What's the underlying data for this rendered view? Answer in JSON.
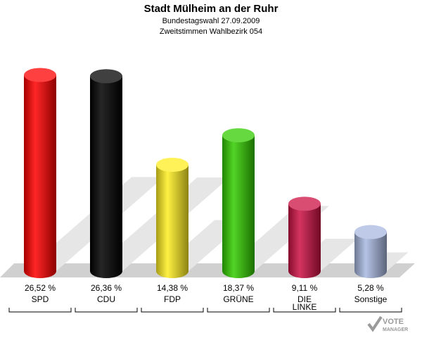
{
  "header": {
    "title": "Stadt Mülheim an der Ruhr",
    "subtitle1": "Bundestagswahl 27.09.2009",
    "subtitle2": "Zweitstimmen Wahlbezirk 054"
  },
  "brand": {
    "line1": "VOTE",
    "line2": "MANAGER"
  },
  "chart_data": {
    "type": "bar",
    "title": "Stadt Mülheim an der Ruhr",
    "categories": [
      "SPD",
      "CDU",
      "FDP",
      "GRÜNE",
      "DIE LINKE",
      "Sonstige"
    ],
    "category_lines": [
      [
        "SPD"
      ],
      [
        "CDU"
      ],
      [
        "FDP"
      ],
      [
        "GRÜNE"
      ],
      [
        "DIE",
        "LINKE"
      ],
      [
        "Sonstige"
      ]
    ],
    "values": [
      26.52,
      26.36,
      14.38,
      18.37,
      9.11,
      5.28
    ],
    "value_labels": [
      "26,52 %",
      "26,36 %",
      "14,38 %",
      "18,37 %",
      "9,11 %",
      "5,28 %"
    ],
    "colors": [
      "#ff0000",
      "#000000",
      "#ffee22",
      "#33cc00",
      "#cc1144",
      "#a8b8e0"
    ],
    "ylim": [
      0,
      30
    ],
    "grid": false,
    "legend": "none"
  }
}
